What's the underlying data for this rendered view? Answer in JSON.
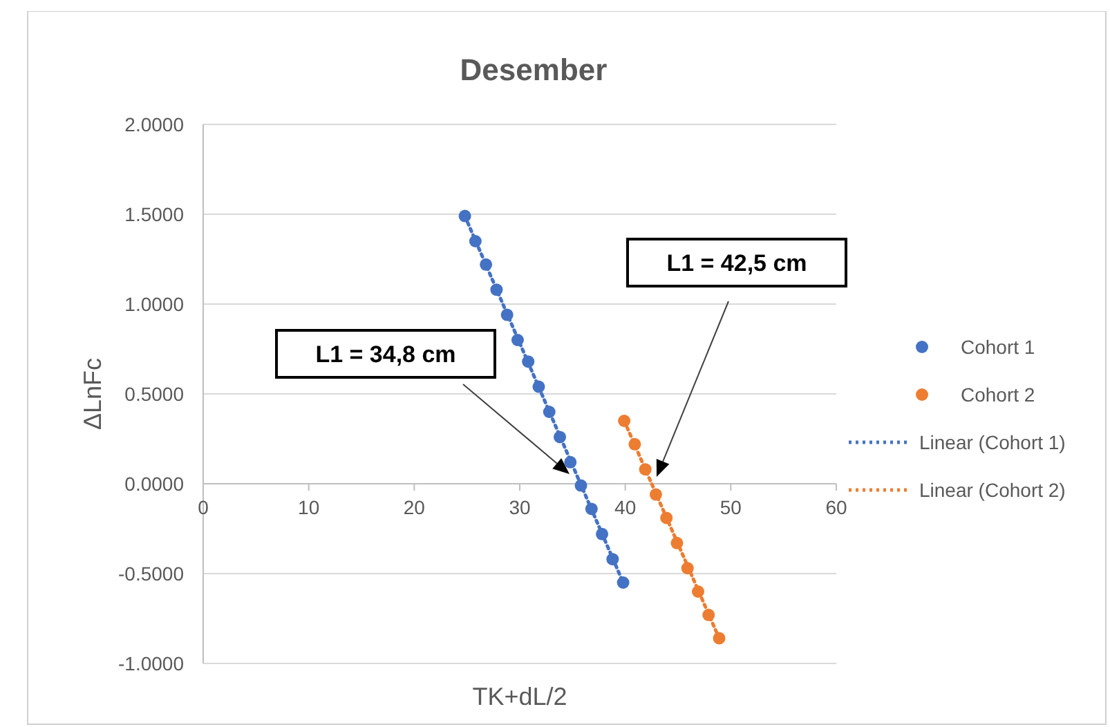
{
  "chart_data": {
    "type": "scatter",
    "title": "Desember",
    "xlabel": "TK+dL/2",
    "ylabel": "ΔLnFc",
    "xlim": [
      0,
      60
    ],
    "xticks": [
      0,
      10,
      20,
      30,
      40,
      50,
      60
    ],
    "ylim": [
      -1,
      2
    ],
    "yticks": [
      {
        "value": -1,
        "label": "-1.0000"
      },
      {
        "value": -0.5,
        "label": "-0.5000"
      },
      {
        "value": 0,
        "label": "0.0000"
      },
      {
        "value": 0.5,
        "label": "0.5000"
      },
      {
        "value": 1,
        "label": "1.0000"
      },
      {
        "value": 1.5,
        "label": "1.5000"
      },
      {
        "value": 2,
        "label": "2.0000"
      }
    ],
    "grid": "y",
    "legend": "right",
    "series": [
      {
        "name": "Cohort 1",
        "marker": "circle",
        "color": "#4472c4",
        "x": [
          24.8,
          25.8,
          26.8,
          27.8,
          28.8,
          29.8,
          30.8,
          31.8,
          32.8,
          33.8,
          34.8,
          35.8,
          36.8,
          37.8,
          38.8,
          39.8
        ],
        "values": [
          1.49,
          1.35,
          1.22,
          1.08,
          0.94,
          0.8,
          0.68,
          0.54,
          0.4,
          0.26,
          0.12,
          -0.01,
          -0.14,
          -0.28,
          -0.42,
          -0.55
        ]
      },
      {
        "name": "Cohort 2",
        "marker": "circle",
        "color": "#ed7d31",
        "x": [
          39.9,
          40.9,
          41.9,
          42.9,
          43.9,
          44.9,
          45.9,
          46.9,
          47.9,
          48.9
        ],
        "values": [
          0.35,
          0.22,
          0.08,
          -0.06,
          -0.19,
          -0.33,
          -0.47,
          -0.6,
          -0.73,
          -0.86
        ]
      },
      {
        "name": "Linear (Cohort 1)",
        "type": "line",
        "marker": "none",
        "line_style": "dotted",
        "color": "#4472c4",
        "x": [
          24.8,
          39.8
        ],
        "values": [
          1.49,
          -0.55
        ]
      },
      {
        "name": "Linear (Cohort 2)",
        "type": "line",
        "marker": "none",
        "line_style": "dotted",
        "color": "#ed7d31",
        "x": [
          39.9,
          48.9
        ],
        "values": [
          0.35,
          -0.86
        ]
      }
    ],
    "annotations": [
      "L1 = 34,8 cm",
      "L1 = 42,5 cm"
    ]
  }
}
